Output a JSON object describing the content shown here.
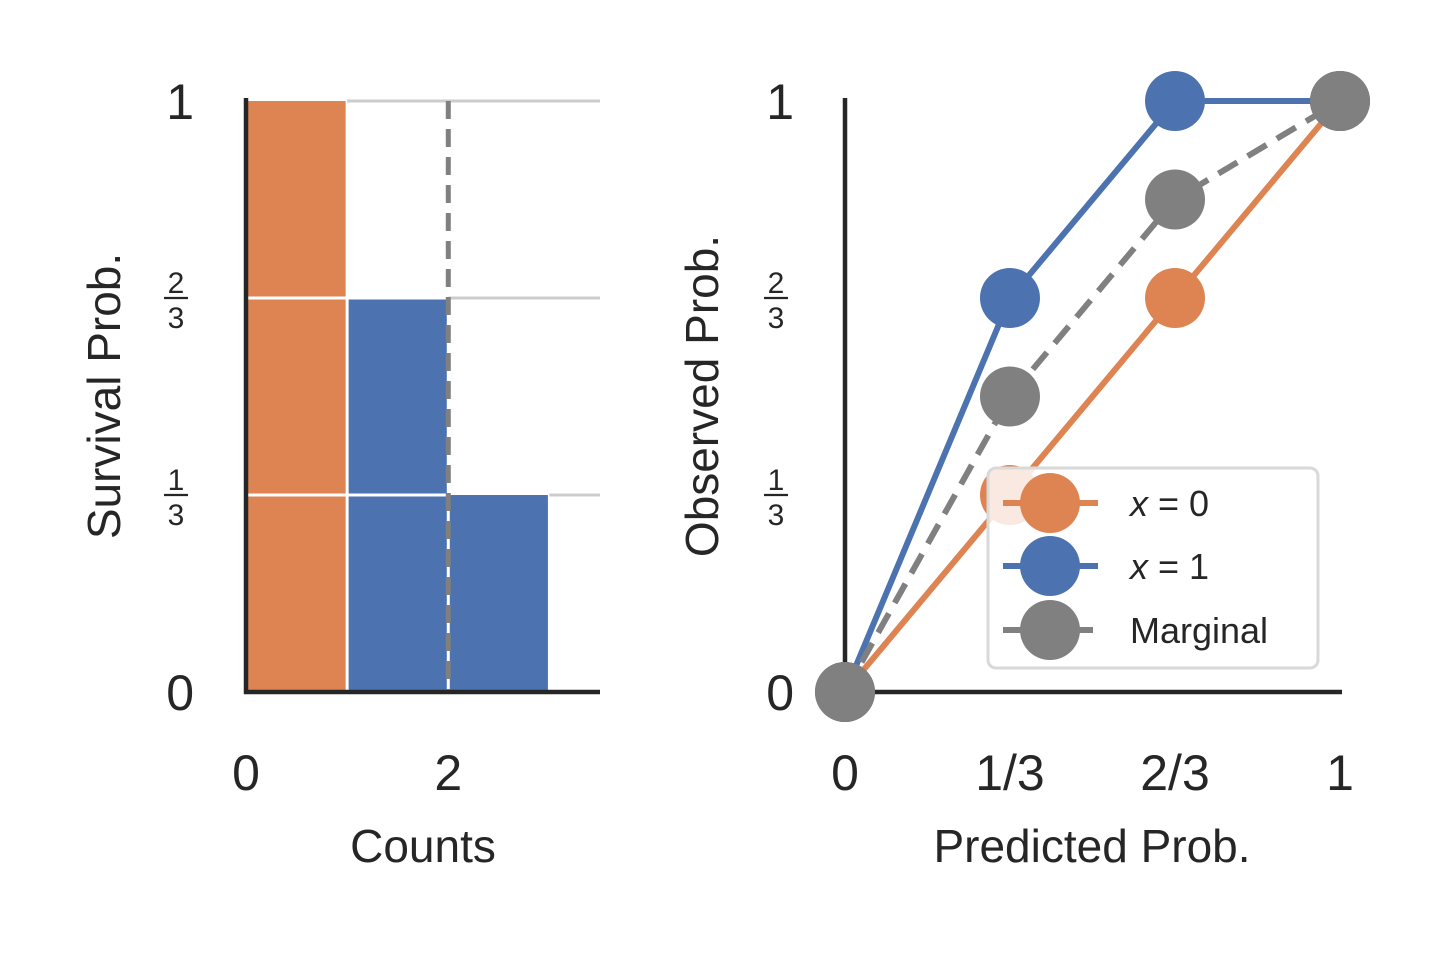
{
  "chart_data": [
    {
      "type": "bar",
      "xlabel": "Counts",
      "ylabel": "Survival Prob.",
      "xlim": [
        0,
        3.5
      ],
      "ylim": [
        0,
        1
      ],
      "x_ticks": [
        {
          "value": 0,
          "label": "0"
        },
        {
          "value": 2,
          "label": "2"
        }
      ],
      "y_ticks": [
        {
          "value": 0,
          "label": "0"
        },
        {
          "value": 0.3333,
          "num": "1",
          "den": "3"
        },
        {
          "value": 0.6667,
          "num": "2",
          "den": "3"
        },
        {
          "value": 1,
          "label": "1"
        }
      ],
      "bars": [
        {
          "x0": 0,
          "x1": 1,
          "value": 1,
          "color": "#dd8452"
        },
        {
          "x0": 1,
          "x1": 2,
          "value": 0.6667,
          "color": "#4c72b0"
        },
        {
          "x0": 2,
          "x1": 3,
          "value": 0.3333,
          "color": "#4c72b0"
        }
      ],
      "step_lines": [
        {
          "x_start": 1,
          "value": 1
        },
        {
          "x_start": 2,
          "value": 0.6667
        },
        {
          "x_start": 3,
          "value": 0.3333
        }
      ],
      "vline": {
        "x": 2,
        "color": "#808080",
        "style": "dashed"
      },
      "grid": false
    },
    {
      "type": "line",
      "xlabel": "Predicted Prob.",
      "ylabel": "Observed Prob.",
      "xlim": [
        0,
        1
      ],
      "ylim": [
        0,
        1
      ],
      "x_ticks": [
        {
          "value": 0,
          "label": "0"
        },
        {
          "value": 0.3333,
          "label": "1/3"
        },
        {
          "value": 0.6667,
          "label": "2/3"
        },
        {
          "value": 1,
          "label": "1"
        }
      ],
      "y_ticks": [
        {
          "value": 0,
          "label": "0"
        },
        {
          "value": 0.3333,
          "num": "1",
          "den": "3"
        },
        {
          "value": 0.6667,
          "num": "2",
          "den": "3"
        },
        {
          "value": 1,
          "label": "1"
        }
      ],
      "series": [
        {
          "key": "x0",
          "name_var": "x",
          "name_rest": " = 0",
          "color": "#dd8452",
          "dashed": false,
          "x": [
            0,
            0.3333,
            0.6667,
            1
          ],
          "y": [
            0,
            0.3333,
            0.6667,
            1
          ]
        },
        {
          "key": "x1",
          "name_var": "x",
          "name_rest": " = 1",
          "color": "#4c72b0",
          "dashed": false,
          "x": [
            0,
            0.3333,
            0.6667,
            1
          ],
          "y": [
            0,
            0.6667,
            1,
            1
          ]
        },
        {
          "key": "marginal",
          "name": "Marginal",
          "color": "#808080",
          "dashed": true,
          "x": [
            0,
            0.3333,
            0.6667,
            1
          ],
          "y": [
            0,
            0.5,
            0.8333,
            1
          ]
        }
      ],
      "legend_position": "lower-right",
      "grid": false
    }
  ]
}
